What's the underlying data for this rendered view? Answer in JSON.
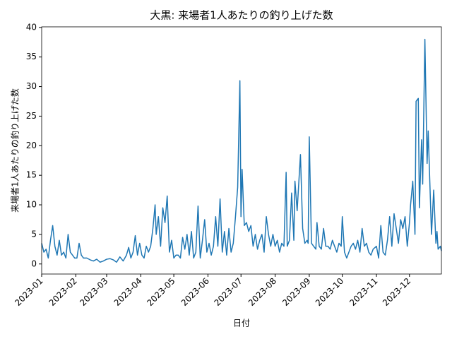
{
  "chart_data": {
    "type": "line",
    "title": "大黒: 来場者1人あたりの釣り上げた数",
    "xlabel": "日付",
    "ylabel": "来場者1人あたりの釣り上げた数",
    "x": [
      "2023-01-01",
      "2023-01-03",
      "2023-01-05",
      "2023-01-07",
      "2023-01-09",
      "2023-01-11",
      "2023-01-13",
      "2023-01-15",
      "2023-01-17",
      "2023-01-19",
      "2023-01-21",
      "2023-01-23",
      "2023-01-25",
      "2023-01-27",
      "2023-01-29",
      "2023-01-31",
      "2023-02-02",
      "2023-02-04",
      "2023-02-06",
      "2023-02-08",
      "2023-02-11",
      "2023-02-14",
      "2023-02-17",
      "2023-02-20",
      "2023-02-23",
      "2023-02-26",
      "2023-03-01",
      "2023-03-04",
      "2023-03-07",
      "2023-03-10",
      "2023-03-13",
      "2023-03-16",
      "2023-03-19",
      "2023-03-21",
      "2023-03-23",
      "2023-03-25",
      "2023-03-27",
      "2023-03-29",
      "2023-03-31",
      "2023-04-02",
      "2023-04-04",
      "2023-04-06",
      "2023-04-08",
      "2023-04-10",
      "2023-04-12",
      "2023-04-14",
      "2023-04-15",
      "2023-04-17",
      "2023-04-19",
      "2023-04-21",
      "2023-04-23",
      "2023-04-25",
      "2023-04-27",
      "2023-04-29",
      "2023-05-01",
      "2023-05-03",
      "2023-05-05",
      "2023-05-07",
      "2023-05-09",
      "2023-05-11",
      "2023-05-13",
      "2023-05-15",
      "2023-05-17",
      "2023-05-19",
      "2023-05-21",
      "2023-05-23",
      "2023-05-25",
      "2023-05-27",
      "2023-05-29",
      "2023-05-31",
      "2023-06-02",
      "2023-06-04",
      "2023-06-06",
      "2023-06-08",
      "2023-06-10",
      "2023-06-12",
      "2023-06-14",
      "2023-06-16",
      "2023-06-18",
      "2023-06-20",
      "2023-06-22",
      "2023-06-24",
      "2023-06-26",
      "2023-06-28",
      "2023-06-30",
      "2023-07-01",
      "2023-07-02",
      "2023-07-04",
      "2023-07-06",
      "2023-07-08",
      "2023-07-10",
      "2023-07-12",
      "2023-07-14",
      "2023-07-16",
      "2023-07-18",
      "2023-07-20",
      "2023-07-22",
      "2023-07-24",
      "2023-07-26",
      "2023-07-28",
      "2023-07-30",
      "2023-08-01",
      "2023-08-03",
      "2023-08-05",
      "2023-08-07",
      "2023-08-09",
      "2023-08-11",
      "2023-08-12",
      "2023-08-14",
      "2023-08-16",
      "2023-08-18",
      "2023-08-19",
      "2023-08-21",
      "2023-08-24",
      "2023-08-26",
      "2023-08-28",
      "2023-08-30",
      "2023-08-31",
      "2023-09-01",
      "2023-09-03",
      "2023-09-05",
      "2023-09-07",
      "2023-09-08",
      "2023-09-10",
      "2023-09-12",
      "2023-09-14",
      "2023-09-16",
      "2023-09-18",
      "2023-09-20",
      "2023-09-22",
      "2023-09-24",
      "2023-09-26",
      "2023-09-28",
      "2023-09-30",
      "2023-10-01",
      "2023-10-03",
      "2023-10-05",
      "2023-10-07",
      "2023-10-09",
      "2023-10-11",
      "2023-10-13",
      "2023-10-15",
      "2023-10-17",
      "2023-10-19",
      "2023-10-21",
      "2023-10-23",
      "2023-10-25",
      "2023-10-27",
      "2023-10-29",
      "2023-11-01",
      "2023-11-03",
      "2023-11-05",
      "2023-11-07",
      "2023-11-09",
      "2023-11-11",
      "2023-11-13",
      "2023-11-15",
      "2023-11-17",
      "2023-11-19",
      "2023-11-21",
      "2023-11-23",
      "2023-11-25",
      "2023-11-27",
      "2023-11-29",
      "2023-12-01",
      "2023-12-02",
      "2023-12-04",
      "2023-12-06",
      "2023-12-07",
      "2023-12-09",
      "2023-12-10",
      "2023-12-12",
      "2023-12-13",
      "2023-12-15",
      "2023-12-17",
      "2023-12-18",
      "2023-12-21",
      "2023-12-23",
      "2023-12-25",
      "2023-12-26",
      "2023-12-27",
      "2023-12-29",
      "2023-12-30"
    ],
    "series": [
      {
        "color": "#1f77b4",
        "values": [
          3.5,
          2,
          2.5,
          1,
          4,
          6.5,
          3,
          1.5,
          4,
          1.5,
          2,
          1,
          5,
          2,
          1.5,
          1,
          1,
          3.5,
          1.5,
          1,
          1,
          0.7,
          0.5,
          0.8,
          0.3,
          0.5,
          0.8,
          0.9,
          0.7,
          0.3,
          1.2,
          0.5,
          1.5,
          2.8,
          1,
          2,
          4.8,
          1.5,
          3.5,
          1.5,
          1,
          3,
          2,
          3,
          6,
          10,
          5,
          8,
          3,
          9.5,
          7,
          11.5,
          2,
          4,
          1,
          1.5,
          1.5,
          1,
          4.5,
          2.5,
          5,
          1.5,
          5.5,
          1,
          2,
          9.8,
          1,
          4,
          7.5,
          2,
          3.5,
          1.5,
          3,
          8,
          3,
          11,
          2,
          5.5,
          1.5,
          6,
          2,
          3.5,
          8,
          13,
          31,
          8,
          16,
          6.5,
          7,
          5.5,
          6.5,
          3,
          5,
          2.5,
          4,
          5,
          2,
          8,
          5,
          3,
          5,
          3,
          4,
          2,
          3.5,
          3,
          15.5,
          3,
          4,
          12,
          4,
          14,
          9,
          18.5,
          6,
          3.5,
          4,
          3.5,
          21.5,
          3.5,
          3,
          2.5,
          7,
          3,
          2.5,
          6,
          3,
          3,
          2.5,
          4,
          3,
          2,
          3.5,
          3,
          8,
          2,
          1,
          2,
          3,
          3.5,
          2.5,
          4,
          2,
          6,
          3,
          3.5,
          2,
          1.5,
          2.5,
          3,
          1,
          6.5,
          2,
          1.5,
          4,
          8,
          3,
          8.5,
          6,
          3.5,
          7.5,
          6,
          8,
          3,
          7,
          10,
          14,
          5,
          27.5,
          28,
          9.5,
          21,
          13.5,
          38,
          17,
          22.5,
          5,
          12.5,
          3.5,
          5.5,
          2.5,
          3,
          2.2
        ]
      }
    ],
    "xlim": [
      "2023-01-01",
      "2023-12-30"
    ],
    "xticks": [
      {
        "value": "2023-01-01",
        "label": "2023-01"
      },
      {
        "value": "2023-02-01",
        "label": "2023-02"
      },
      {
        "value": "2023-03-01",
        "label": "2023-03"
      },
      {
        "value": "2023-04-01",
        "label": "2023-04"
      },
      {
        "value": "2023-05-01",
        "label": "2023-05"
      },
      {
        "value": "2023-06-01",
        "label": "2023-06"
      },
      {
        "value": "2023-07-01",
        "label": "2023-07"
      },
      {
        "value": "2023-08-01",
        "label": "2023-08"
      },
      {
        "value": "2023-09-01",
        "label": "2023-09"
      },
      {
        "value": "2023-10-01",
        "label": "2023-10"
      },
      {
        "value": "2023-11-01",
        "label": "2023-11"
      },
      {
        "value": "2023-12-01",
        "label": "2023-12"
      }
    ],
    "ylim": [
      -1.7,
      40.1
    ],
    "yticks": [
      0,
      5,
      10,
      15,
      20,
      25,
      30,
      35,
      40
    ]
  }
}
